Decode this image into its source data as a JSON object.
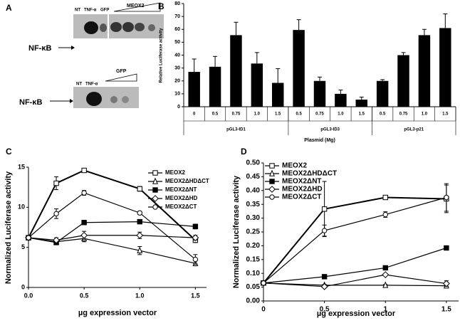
{
  "blot": {
    "panel": "A",
    "top": {
      "band": "NF-κB",
      "lanes": [
        "NT",
        "TNF-α",
        "GFP"
      ],
      "group": "MEOX2"
    },
    "bottom": {
      "band": "NF-κB",
      "lanes": [
        "NT",
        "TNF-α"
      ],
      "group": "GFP"
    }
  },
  "chart_data": [
    {
      "panel": "B",
      "type": "bar",
      "ylabel": "Relative Luciferase activity",
      "xlabel": "Plasmid (Mg)",
      "color": "#000000",
      "ylim": [
        0,
        80
      ],
      "yticks": [
        0,
        10,
        20,
        30,
        40,
        50,
        60,
        70,
        80
      ],
      "groups": [
        {
          "name": "pGL3-ID1",
          "categories": [
            "0",
            "0.5",
            "0.75",
            "1.0",
            "1.5"
          ],
          "values": [
            27,
            31,
            55.5,
            33.5,
            18.5
          ],
          "errors": [
            10,
            8,
            10,
            8.5,
            11
          ]
        },
        {
          "name": "pGL3-ID3",
          "categories": [
            "0.5",
            "0.75",
            "1.0",
            "1.5"
          ],
          "values": [
            59.5,
            20,
            10,
            5.5
          ],
          "errors": [
            8,
            3,
            3,
            2
          ]
        },
        {
          "name": "pGL3-p21",
          "categories": [
            "0.5",
            "0.75",
            "1.0",
            "1.5"
          ],
          "values": [
            20,
            40,
            55.5,
            61
          ],
          "errors": [
            1,
            2,
            4.5,
            11
          ]
        }
      ]
    },
    {
      "panel": "C",
      "type": "line",
      "ylabel": "Normalized Luciferase activity",
      "xlabel": "µg expression vector",
      "xlim": [
        0,
        1.6
      ],
      "xticks": [
        {
          "value": 0,
          "label": "0.0"
        },
        {
          "value": 0.5,
          "label": "0.5"
        },
        {
          "value": 1,
          "label": "1.0"
        },
        {
          "value": 1.5,
          "label": "1.5"
        }
      ],
      "ylim": [
        0,
        15
      ],
      "yticks": [
        0,
        5,
        10,
        15
      ],
      "legend": "top-right",
      "x": [
        0,
        0.25,
        0.5,
        1.0,
        1.5
      ],
      "series": [
        {
          "name": "MEOX2",
          "color": "#000000",
          "marker": "square-open",
          "values": [
            6.2,
            13.0,
            14.6,
            12.3,
            5.9
          ],
          "errors": [
            0.2,
            0.8,
            0.2,
            0.3,
            0.3
          ]
        },
        {
          "name": "MEOX2ΔHDΔCT",
          "color": "#000000",
          "marker": "triangle-open",
          "values": [
            6.2,
            5.7,
            6.1,
            4.6,
            3.0
          ],
          "errors": [
            0.2,
            0.3,
            0.4,
            0.5,
            0.3
          ]
        },
        {
          "name": "MEOX2ΔNT",
          "color": "#000000",
          "marker": "square",
          "values": [
            6.2,
            5.6,
            8.1,
            8.2,
            7.6
          ],
          "errors": [
            0.2,
            0.2,
            0.2,
            0.2,
            0.3
          ]
        },
        {
          "name": "MEOX2ΔHD",
          "color": "#000000",
          "marker": "diamond-open",
          "values": [
            6.2,
            5.9,
            6.5,
            6.5,
            6.2
          ],
          "errors": [
            0.2,
            0.3,
            0.5,
            0.4,
            0.3
          ]
        },
        {
          "name": "MEOX2ΔCT",
          "color": "#000000",
          "marker": "circle-open",
          "values": [
            6.2,
            9.2,
            11.8,
            9.3,
            3.5
          ],
          "errors": [
            0.2,
            0.6,
            0.3,
            0.2,
            0.6
          ]
        }
      ]
    },
    {
      "panel": "D",
      "type": "line",
      "ylabel": "Normalized Luciferase activity",
      "xlabel": "µg expression vector",
      "xlim": [
        0,
        1.6
      ],
      "xticks": [
        0,
        0.5,
        1,
        1.5
      ],
      "ylim": [
        0,
        0.5
      ],
      "yticks": [
        {
          "value": 0,
          "label": "0.00"
        },
        {
          "value": 0.05,
          "label": "0.05"
        },
        {
          "value": 0.1,
          "label": "0.10"
        },
        {
          "value": 0.15,
          "label": "0.15"
        },
        {
          "value": 0.2,
          "label": "0.20"
        },
        {
          "value": 0.25,
          "label": "0.25"
        },
        {
          "value": 0.3,
          "label": "0.30"
        },
        {
          "value": 0.35,
          "label": "0.35"
        },
        {
          "value": 0.4,
          "label": "0.40"
        },
        {
          "value": 0.45,
          "label": "0.45"
        },
        {
          "value": 0.5,
          "label": "0.50"
        }
      ],
      "legend": "top-left",
      "x": [
        0,
        0.5,
        1,
        1.5
      ],
      "series": [
        {
          "name": "MEOX2",
          "color": "#000000",
          "marker": "square-open",
          "values": [
            0.065,
            0.333,
            0.375,
            0.37
          ],
          "errors": [
            0.003,
            0.1,
            0.006,
            0.05
          ]
        },
        {
          "name": "MEOX2ΔHDΔCT",
          "color": "#000000",
          "marker": "triangle-open",
          "values": [
            0.065,
            0.057,
            0.057,
            0.055
          ],
          "errors": [
            0.003,
            0.003,
            0.003,
            0.003
          ]
        },
        {
          "name": "MEOX2ΔNT",
          "color": "#000000",
          "marker": "square",
          "values": [
            0.065,
            0.088,
            0.12,
            0.192
          ],
          "errors": [
            0.003,
            0.004,
            0.004,
            0.004
          ]
        },
        {
          "name": "MEOX2ΔHD",
          "color": "#000000",
          "marker": "diamond-open",
          "values": [
            0.065,
            0.052,
            0.095,
            0.063
          ],
          "errors": [
            0.003,
            0.003,
            0.004,
            0.01
          ]
        },
        {
          "name": "MEOX2ΔCT",
          "color": "#000000",
          "marker": "circle-open",
          "values": [
            0.065,
            0.255,
            0.313,
            0.375
          ],
          "errors": [
            0.003,
            0.02,
            0.01,
            0.05
          ]
        }
      ]
    }
  ]
}
